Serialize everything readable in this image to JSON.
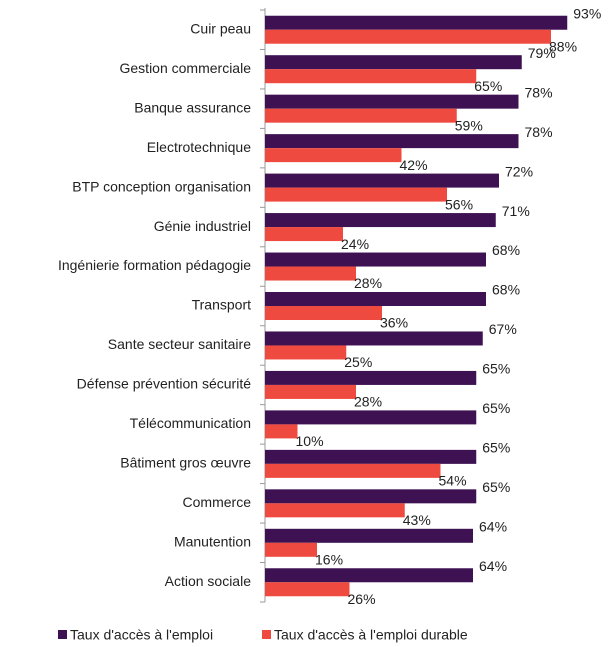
{
  "chart_data": {
    "type": "bar",
    "orientation": "horizontal",
    "categories": [
      "Cuir peau",
      "Gestion commerciale",
      "Banque assurance",
      "Electrotechnique",
      "BTP conception organisation",
      "Génie industriel",
      "Ingénierie formation pédagogie",
      "Transport",
      "Sante secteur sanitaire",
      "Défense prévention sécurité",
      "Télécommunication",
      "Bâtiment gros œuvre",
      "Commerce",
      "Manutention",
      "Action sociale"
    ],
    "series": [
      {
        "name": "Taux d'accès à l'emploi",
        "color": "#3d1152",
        "values": [
          93,
          79,
          78,
          78,
          72,
          71,
          68,
          68,
          67,
          65,
          65,
          65,
          65,
          64,
          64
        ],
        "value_labels": [
          "93%",
          "79%",
          "78%",
          "78%",
          "72%",
          "71%",
          "68%",
          "68%",
          "67%",
          "65%",
          "65%",
          "65%",
          "65%",
          "64%",
          "64%"
        ]
      },
      {
        "name": "Taux d'accès à l'emploi durable",
        "color": "#ef4a3f",
        "values": [
          88,
          65,
          59,
          42,
          56,
          24,
          28,
          36,
          25,
          28,
          10,
          54,
          43,
          16,
          26
        ],
        "value_labels": [
          "88%",
          "65%",
          "59%",
          "42%",
          "56%",
          "24%",
          "28%",
          "36%",
          "25%",
          "28%",
          "10%",
          "54%",
          "43%",
          "16%",
          "26%"
        ]
      }
    ],
    "xlim": [
      0,
      100
    ],
    "legend": "bottom"
  }
}
